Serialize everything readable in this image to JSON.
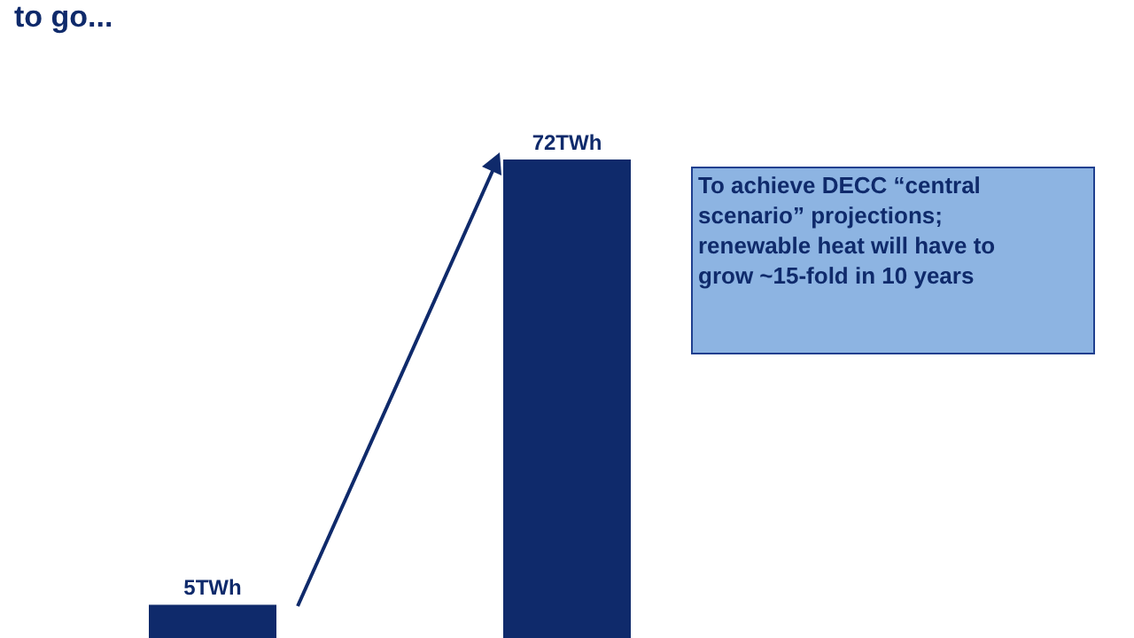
{
  "chart_data": {
    "type": "bar",
    "title": "to go...",
    "categories": [
      null,
      null
    ],
    "values": [
      5,
      72
    ],
    "color": "#0f2a6b",
    "value_labels": [
      "5TWh",
      "72TWh"
    ],
    "annotations": [
      "To achieve DECC “central scenario” projections; renewable heat will have to grow ~15-fold in 10 years"
    ],
    "legend": false
  }
}
